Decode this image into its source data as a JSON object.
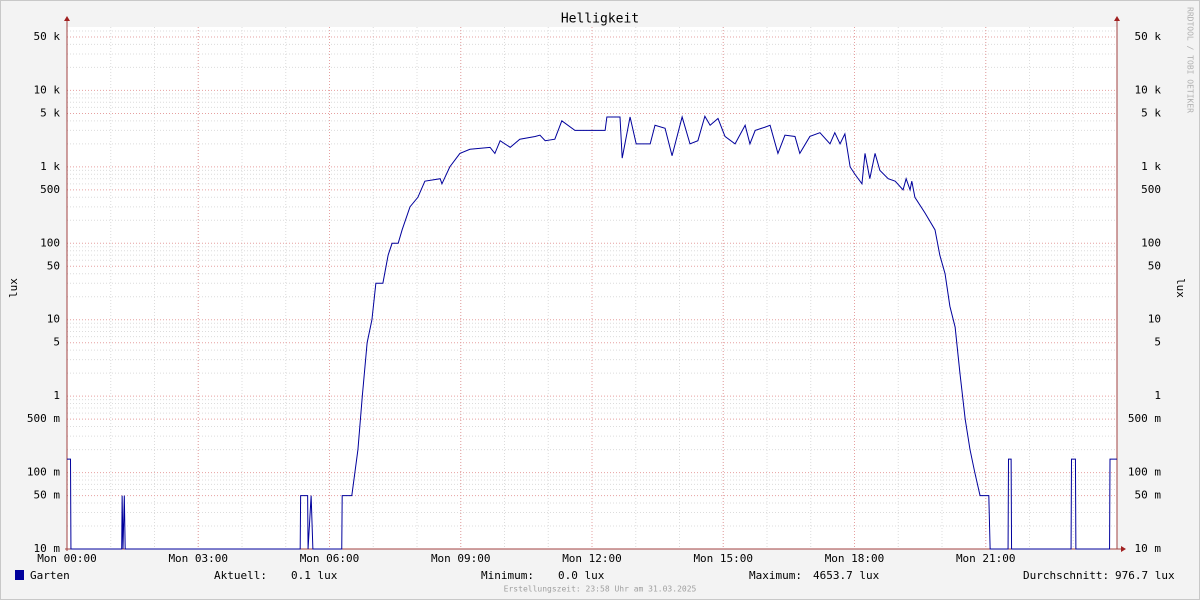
{
  "chart_data": {
    "type": "line",
    "title": "Helligkeit",
    "y_label": "lux",
    "log_scale": true,
    "grid": true,
    "watermark": "RRDTOOL / TOBI OETIKER",
    "footer": "Erstellungszeit: 23:58 Uhr am 31.03.2025",
    "xlim": [
      0,
      24
    ],
    "xticks": [
      {
        "value": 0,
        "label": "Mon 00:00"
      },
      {
        "value": 3,
        "label": "Mon 03:00"
      },
      {
        "value": 6,
        "label": "Mon 06:00"
      },
      {
        "value": 9,
        "label": "Mon 09:00"
      },
      {
        "value": 12,
        "label": "Mon 12:00"
      },
      {
        "value": 15,
        "label": "Mon 15:00"
      },
      {
        "value": 18,
        "label": "Mon 18:00"
      },
      {
        "value": 21,
        "label": "Mon 21:00"
      }
    ],
    "ylim": [
      0.01,
      67600
    ],
    "yticks": [
      {
        "value": 0.01,
        "label": "10 m"
      },
      {
        "value": 0.05,
        "label": "50 m"
      },
      {
        "value": 0.1,
        "label": "100 m"
      },
      {
        "value": 0.5,
        "label": "500 m"
      },
      1,
      5,
      10,
      50,
      100,
      500,
      {
        "value": 1000,
        "label": "1 k"
      },
      {
        "value": 5000,
        "label": "5 k"
      },
      {
        "value": 10000,
        "label": "10 k"
      },
      {
        "value": 50000,
        "label": "50 k"
      }
    ],
    "x": [
      0,
      0.08,
      0.09,
      1.25,
      1.26,
      1.28,
      1.31,
      1.33,
      5.33,
      5.34,
      5.5,
      5.51,
      5.58,
      5.62,
      6.28,
      6.29,
      6.51,
      6.58,
      6.65,
      6.75,
      6.86,
      6.97,
      7.06,
      7.22,
      7.34,
      7.43,
      7.57,
      7.66,
      7.84,
      8.02,
      8.18,
      8.53,
      8.57,
      8.75,
      8.98,
      9.21,
      9.67,
      9.78,
      9.9,
      10.13,
      10.35,
      10.7,
      10.81,
      10.93,
      11.15,
      11.31,
      11.61,
      11.84,
      12.3,
      12.34,
      12.64,
      12.69,
      12.87,
      13.01,
      13.33,
      13.44,
      13.67,
      13.83,
      14.06,
      14.24,
      14.42,
      14.58,
      14.7,
      14.88,
      15.04,
      15.27,
      15.5,
      15.61,
      15.73,
      15.95,
      16.07,
      16.25,
      16.41,
      16.64,
      16.75,
      16.98,
      17.21,
      17.44,
      17.55,
      17.67,
      17.78,
      17.9,
      18.01,
      18.17,
      18.24,
      18.35,
      18.47,
      18.58,
      18.77,
      18.93,
      19.11,
      19.18,
      19.27,
      19.31,
      19.38,
      19.61,
      19.84,
      19.95,
      20.07,
      20.18,
      20.3,
      20.41,
      20.53,
      20.64,
      20.75,
      20.87,
      21.07,
      21.1,
      21.51,
      21.52,
      21.58,
      21.59,
      22.95,
      22.96,
      23.05,
      23.06,
      23.83,
      23.84,
      24
    ],
    "series": [
      {
        "name": "Garten",
        "color": "#00009c",
        "values": [
          0.15,
          0.15,
          0.01,
          0.01,
          0.05,
          0.01,
          0.05,
          0.01,
          0.01,
          0.05,
          0.05,
          0.01,
          0.05,
          0.01,
          0.01,
          0.05,
          0.05,
          0.1,
          0.2,
          1,
          5,
          10,
          30,
          30,
          70,
          100,
          100,
          150,
          300,
          400,
          650,
          700,
          600,
          1000,
          1500,
          1700,
          1800,
          1500,
          2200,
          1800,
          2300,
          2500,
          2600,
          2200,
          2300,
          4000,
          3000,
          3000,
          3000,
          4500,
          4500,
          1300,
          4500,
          2000,
          2000,
          3500,
          3200,
          1400,
          4500,
          2000,
          2200,
          4600,
          3500,
          4300,
          2500,
          2000,
          3500,
          2000,
          3000,
          3300,
          3500,
          1500,
          2600,
          2500,
          1500,
          2500,
          2800,
          2000,
          2800,
          2000,
          2700,
          1000,
          800,
          600,
          1500,
          700,
          1500,
          900,
          700,
          650,
          500,
          700,
          500,
          650,
          400,
          250,
          150,
          70,
          40,
          15,
          8,
          2,
          0.5,
          0.2,
          0.1,
          0.05,
          0.05,
          0.01,
          0.01,
          0.15,
          0.15,
          0.01,
          0.01,
          0.15,
          0.15,
          0.01,
          0.01,
          0.15,
          0.15
        ]
      }
    ],
    "legend_stats": [
      {
        "label": "Aktuell:",
        "value": "0.1 lux"
      },
      {
        "label": "Minimum:",
        "value": "0.0 lux"
      },
      {
        "label": "Maximum:",
        "value": "4653.7 lux"
      },
      {
        "label": "Durchschnitt:",
        "value": "976.7 lux"
      }
    ]
  }
}
